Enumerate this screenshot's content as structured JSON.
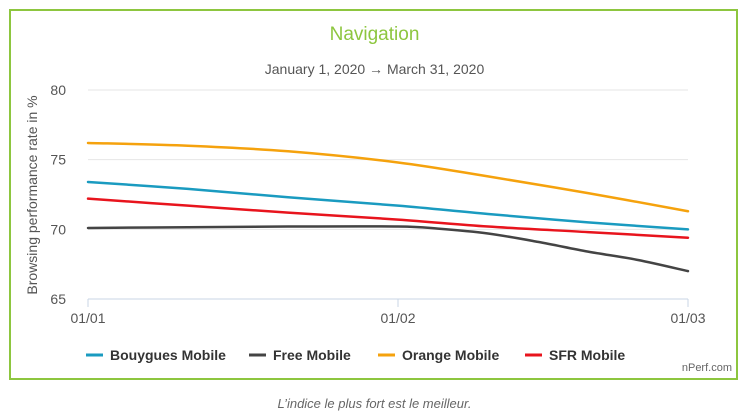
{
  "footer_note": "L’indice le plus fort est le meilleur.",
  "credit": "nPerf.com",
  "chart_data": {
    "type": "line",
    "title": "Navigation",
    "subtitle": "January 1, 2020 → March 31, 2020",
    "xlabel": "",
    "ylabel": "Browsing performance rate in %",
    "x": [
      "01/01",
      "01/02",
      "01/03"
    ],
    "x_days": [
      0,
      31,
      60
    ],
    "ylim": [
      65,
      80
    ],
    "yticks": [
      65,
      70,
      75,
      80
    ],
    "grid": true,
    "legend_position": "bottom",
    "series": [
      {
        "name": "Bouygues Mobile",
        "color": "#1a9bc0",
        "points": [
          [
            0,
            73.4
          ],
          [
            10,
            72.9
          ],
          [
            20,
            72.3
          ],
          [
            31,
            71.7
          ],
          [
            40,
            71.1
          ],
          [
            50,
            70.5
          ],
          [
            60,
            70.0
          ]
        ]
      },
      {
        "name": "Free Mobile",
        "color": "#444444",
        "points": [
          [
            0,
            70.1
          ],
          [
            10,
            70.15
          ],
          [
            20,
            70.2
          ],
          [
            31,
            70.2
          ],
          [
            35,
            70.05
          ],
          [
            40,
            69.7
          ],
          [
            45,
            69.1
          ],
          [
            50,
            68.4
          ],
          [
            55,
            67.8
          ],
          [
            60,
            67.0
          ]
        ]
      },
      {
        "name": "Orange Mobile",
        "color": "#f5a20d",
        "points": [
          [
            0,
            76.2
          ],
          [
            10,
            76.0
          ],
          [
            20,
            75.6
          ],
          [
            31,
            74.8
          ],
          [
            40,
            73.8
          ],
          [
            50,
            72.6
          ],
          [
            60,
            71.3
          ]
        ]
      },
      {
        "name": "SFR Mobile",
        "color": "#e8141d",
        "points": [
          [
            0,
            72.2
          ],
          [
            10,
            71.7
          ],
          [
            20,
            71.2
          ],
          [
            31,
            70.7
          ],
          [
            40,
            70.2
          ],
          [
            50,
            69.8
          ],
          [
            60,
            69.4
          ]
        ]
      }
    ]
  }
}
